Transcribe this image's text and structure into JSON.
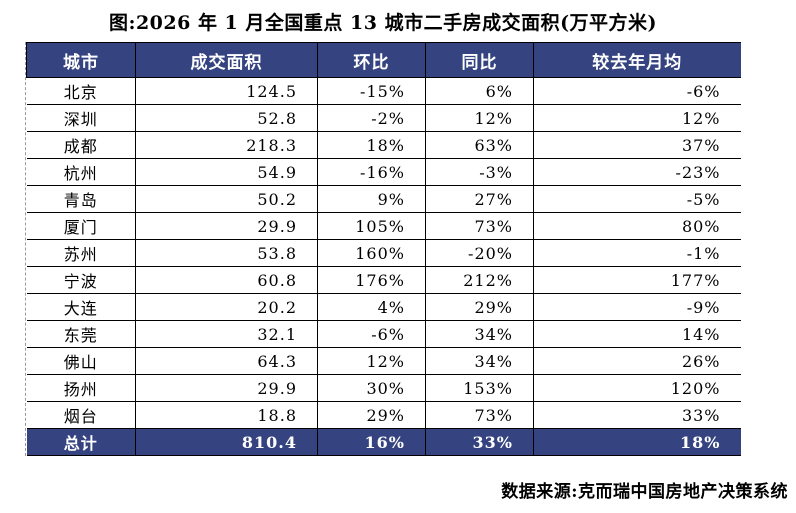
{
  "title": "图:2026 年 1 月全国重点 13 城市二手房成交面积(万平方米)",
  "source": "数据来源:克而瑞中国房地产决策系统",
  "colors": {
    "header_bg": "#354480",
    "header_text": "#ffffff",
    "row_border": "#000000",
    "edge_border_dashed": "#9a9a9a"
  },
  "table": {
    "columns": [
      "城市",
      "成交面积",
      "环比",
      "同比",
      "较去年月均"
    ],
    "rows": [
      [
        "北京",
        "124.5",
        "-15%",
        "6%",
        "-6%"
      ],
      [
        "深圳",
        "52.8",
        "-2%",
        "12%",
        "12%"
      ],
      [
        "成都",
        "218.3",
        "18%",
        "63%",
        "37%"
      ],
      [
        "杭州",
        "54.9",
        "-16%",
        "-3%",
        "-23%"
      ],
      [
        "青岛",
        "50.2",
        "9%",
        "27%",
        "-5%"
      ],
      [
        "厦门",
        "29.9",
        "105%",
        "73%",
        "80%"
      ],
      [
        "苏州",
        "53.8",
        "160%",
        "-20%",
        "-1%"
      ],
      [
        "宁波",
        "60.8",
        "176%",
        "212%",
        "177%"
      ],
      [
        "大连",
        "20.2",
        "4%",
        "29%",
        "-9%"
      ],
      [
        "东莞",
        "32.1",
        "-6%",
        "34%",
        "14%"
      ],
      [
        "佛山",
        "64.3",
        "12%",
        "34%",
        "26%"
      ],
      [
        "扬州",
        "29.9",
        "30%",
        "153%",
        "120%"
      ],
      [
        "烟台",
        "18.8",
        "29%",
        "73%",
        "33%"
      ]
    ],
    "total": [
      "总计",
      "810.4",
      "16%",
      "33%",
      "18%"
    ]
  },
  "chart_data": {
    "type": "table",
    "title": "图:2026年1月全国重点13城市二手房成交面积(万平方米)",
    "columns": [
      "城市",
      "成交面积",
      "环比",
      "同比",
      "较去年月均"
    ],
    "rows": [
      [
        "北京",
        124.5,
        "-15%",
        "6%",
        "-6%"
      ],
      [
        "深圳",
        52.8,
        "-2%",
        "12%",
        "12%"
      ],
      [
        "成都",
        218.3,
        "18%",
        "63%",
        "37%"
      ],
      [
        "杭州",
        54.9,
        "-16%",
        "-3%",
        "-23%"
      ],
      [
        "青岛",
        50.2,
        "9%",
        "27%",
        "-5%"
      ],
      [
        "厦门",
        29.9,
        "105%",
        "73%",
        "80%"
      ],
      [
        "苏州",
        53.8,
        "160%",
        "-20%",
        "-1%"
      ],
      [
        "宁波",
        60.8,
        "176%",
        "212%",
        "177%"
      ],
      [
        "大连",
        20.2,
        "4%",
        "29%",
        "-9%"
      ],
      [
        "东莞",
        32.1,
        "-6%",
        "34%",
        "14%"
      ],
      [
        "佛山",
        64.3,
        "12%",
        "34%",
        "26%"
      ],
      [
        "扬州",
        29.9,
        "30%",
        "153%",
        "120%"
      ],
      [
        "烟台",
        18.8,
        "29%",
        "73%",
        "33%"
      ],
      [
        "总计",
        810.4,
        "16%",
        "33%",
        "18%"
      ]
    ]
  }
}
